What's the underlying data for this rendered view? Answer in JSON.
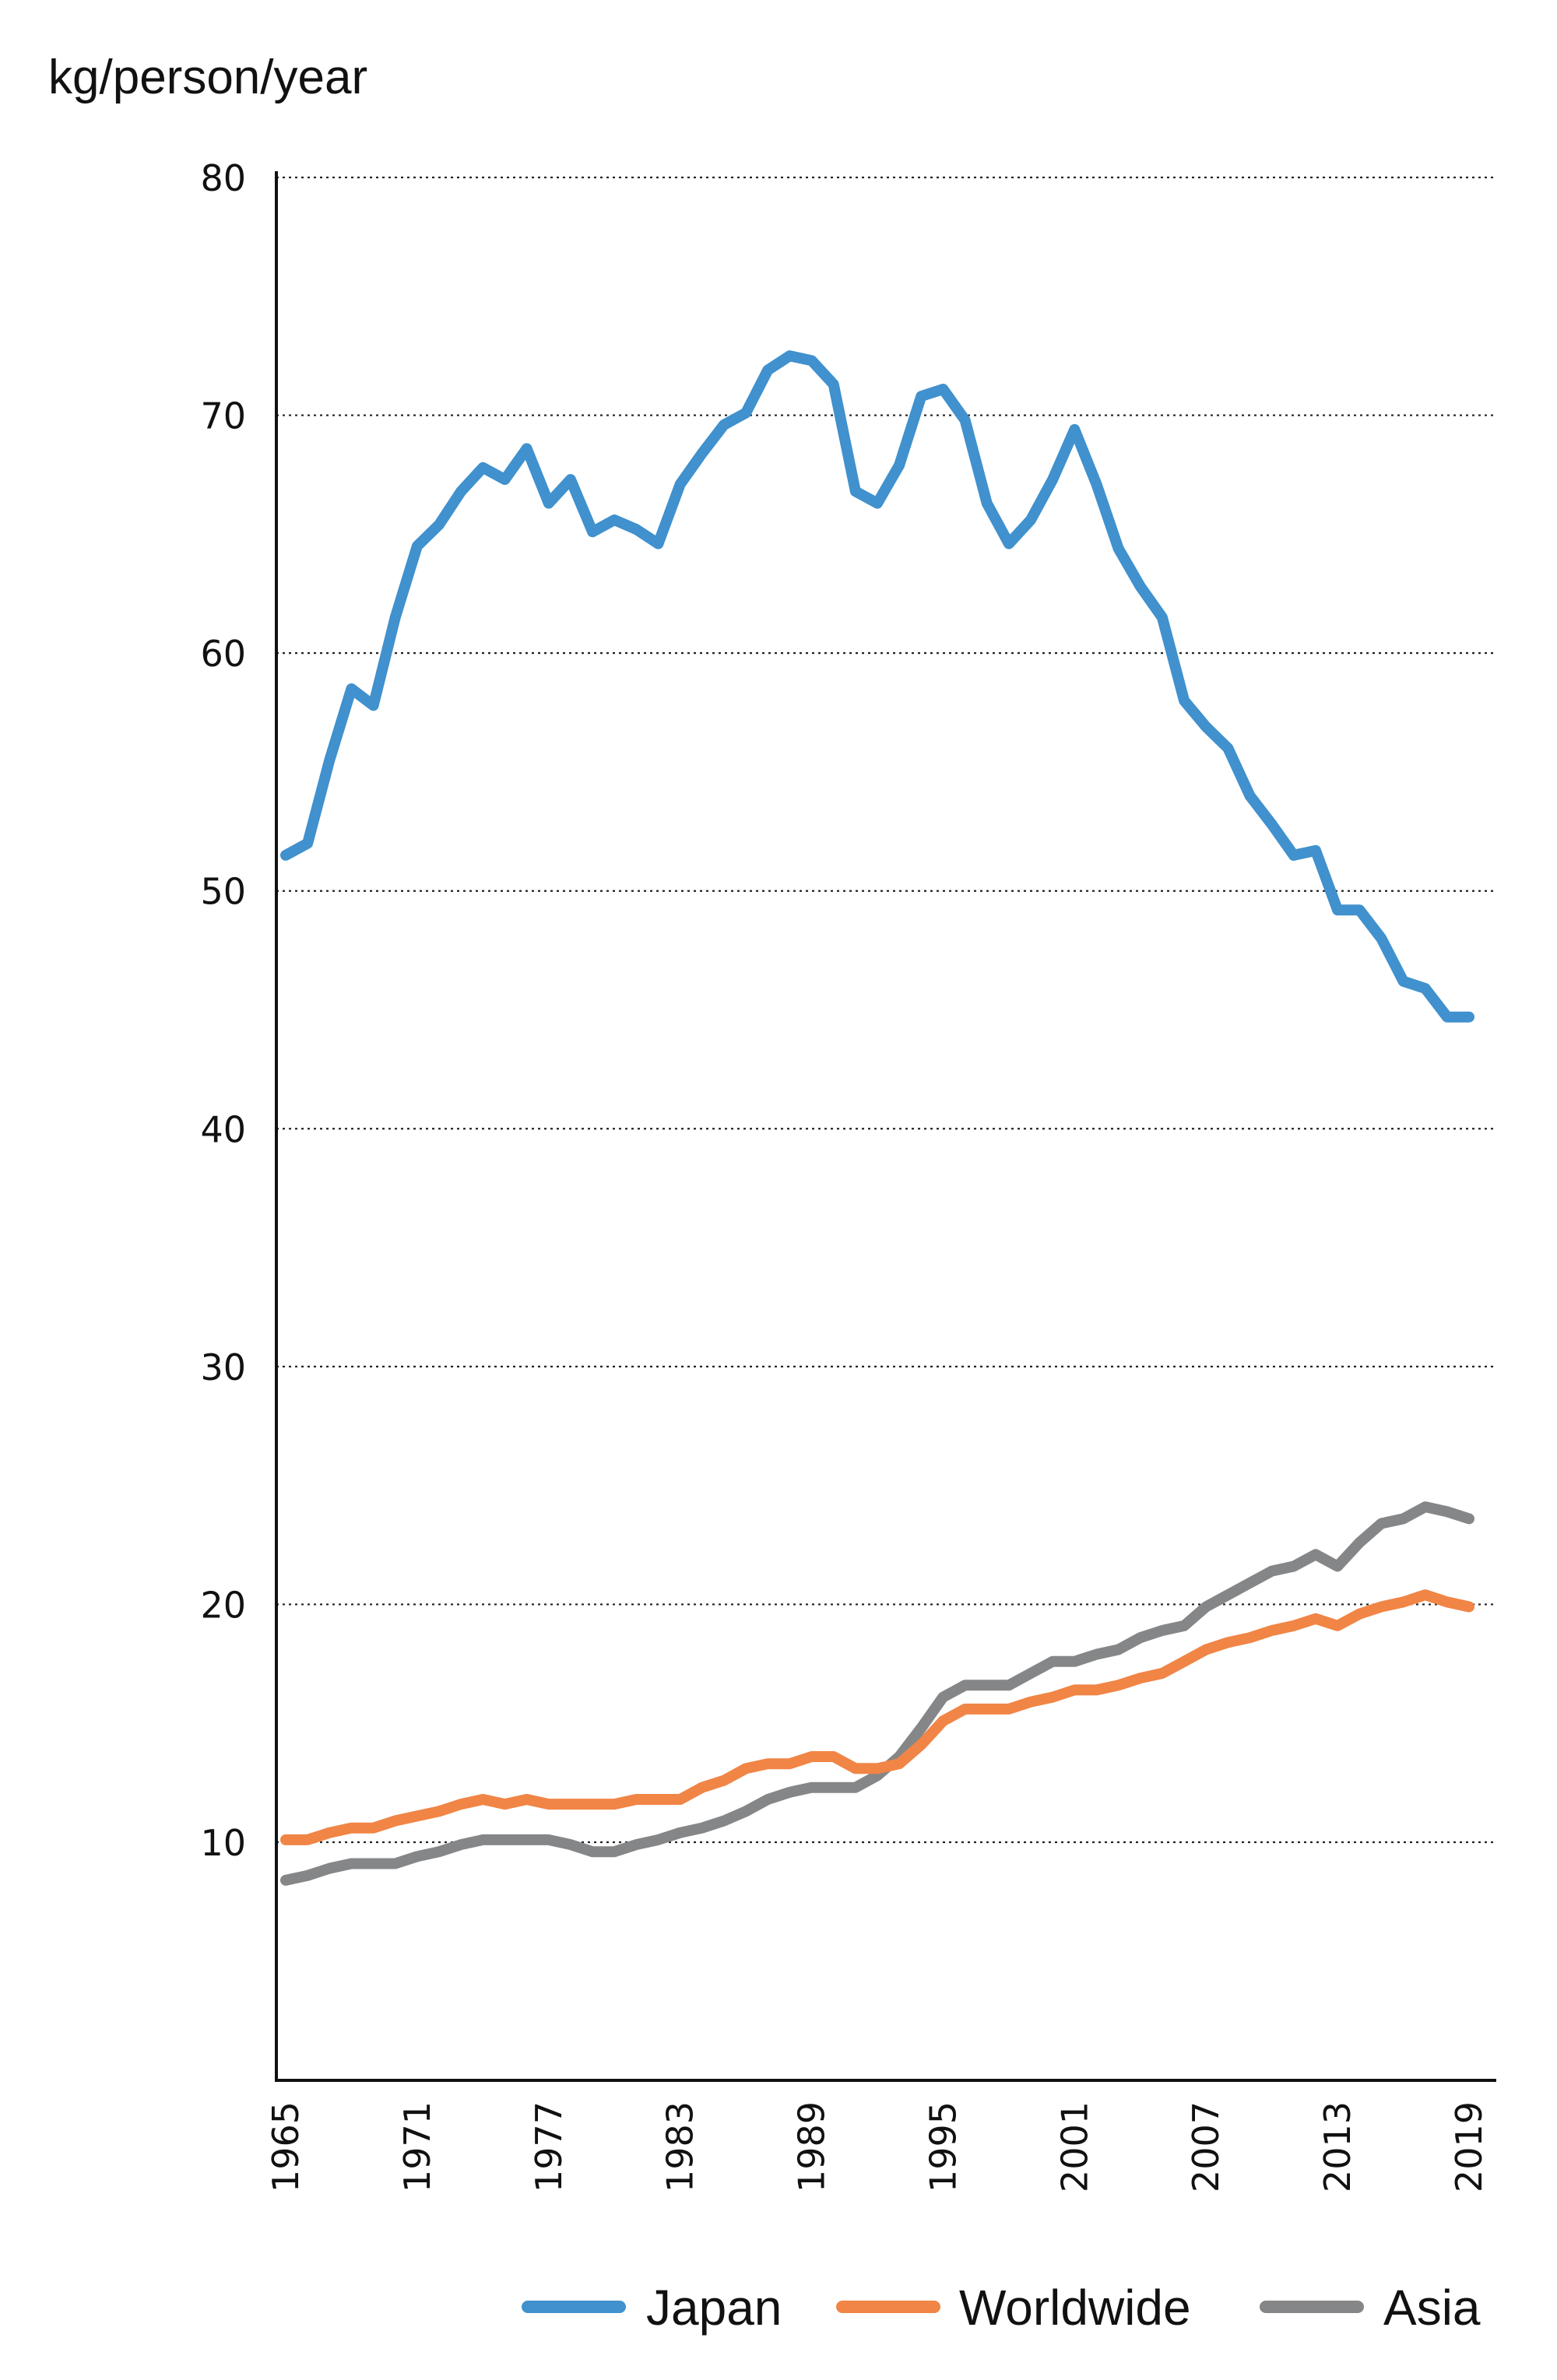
{
  "chart_data": {
    "type": "line",
    "title": "",
    "xlabel": "",
    "ylabel": "kg/person/year",
    "xlim": [
      1965,
      2019
    ],
    "ylim": [
      0,
      80
    ],
    "y_ticks": [
      10,
      20,
      30,
      40,
      50,
      60,
      70,
      80
    ],
    "x_ticks": [
      1965,
      1971,
      1977,
      1983,
      1989,
      1995,
      2001,
      2007,
      2013,
      2019
    ],
    "grid": "horizontal dotted",
    "legend_position": "bottom-right",
    "x": [
      1965,
      1966,
      1967,
      1968,
      1969,
      1970,
      1971,
      1972,
      1973,
      1974,
      1975,
      1976,
      1977,
      1978,
      1979,
      1980,
      1981,
      1982,
      1983,
      1984,
      1985,
      1986,
      1987,
      1988,
      1989,
      1990,
      1991,
      1992,
      1993,
      1994,
      1995,
      1996,
      1997,
      1998,
      1999,
      2000,
      2001,
      2002,
      2003,
      2004,
      2005,
      2006,
      2007,
      2008,
      2009,
      2010,
      2011,
      2012,
      2013,
      2014,
      2015,
      2016,
      2017,
      2018,
      2019
    ],
    "series": [
      {
        "name": "Japan",
        "color": "#4091cd",
        "values": [
          51.5,
          52.0,
          55.5,
          58.5,
          57.8,
          61.5,
          64.5,
          65.4,
          66.8,
          67.8,
          67.3,
          68.6,
          66.3,
          67.3,
          65.1,
          65.6,
          65.2,
          64.6,
          67.1,
          68.4,
          69.6,
          70.1,
          71.9,
          72.5,
          72.3,
          71.3,
          66.8,
          66.3,
          67.9,
          70.8,
          71.1,
          69.8,
          66.3,
          64.6,
          65.6,
          67.3,
          69.4,
          67.1,
          64.4,
          62.8,
          61.5,
          58.0,
          56.9,
          56.0,
          54.0,
          52.8,
          51.5,
          51.7,
          49.2,
          49.2,
          48.0,
          46.2,
          45.9,
          44.7,
          44.7
        ]
      },
      {
        "name": "Worldwide",
        "color": "#f08546",
        "values": [
          10.1,
          10.1,
          10.4,
          10.6,
          10.6,
          10.9,
          11.1,
          11.3,
          11.6,
          11.8,
          11.6,
          11.8,
          11.6,
          11.6,
          11.6,
          11.6,
          11.8,
          11.8,
          11.8,
          12.3,
          12.6,
          13.1,
          13.3,
          13.3,
          13.6,
          13.6,
          13.1,
          13.1,
          13.3,
          14.1,
          15.1,
          15.6,
          15.6,
          15.6,
          15.9,
          16.1,
          16.4,
          16.4,
          16.6,
          16.9,
          17.1,
          17.6,
          18.1,
          18.4,
          18.6,
          18.9,
          19.1,
          19.4,
          19.1,
          19.6,
          19.9,
          20.1,
          20.4,
          20.1,
          19.9
        ]
      },
      {
        "name": "Asia",
        "color": "#858688",
        "values": [
          8.4,
          8.6,
          8.9,
          9.1,
          9.1,
          9.1,
          9.4,
          9.6,
          9.9,
          10.1,
          10.1,
          10.1,
          10.1,
          9.9,
          9.6,
          9.6,
          9.9,
          10.1,
          10.4,
          10.6,
          10.9,
          11.3,
          11.8,
          12.1,
          12.3,
          12.3,
          12.3,
          12.8,
          13.6,
          14.8,
          16.1,
          16.6,
          16.6,
          16.6,
          17.1,
          17.6,
          17.6,
          17.9,
          18.1,
          18.6,
          18.9,
          19.1,
          19.9,
          20.4,
          20.9,
          21.4,
          21.6,
          22.1,
          21.6,
          22.6,
          23.4,
          23.6,
          24.1,
          23.9,
          23.6
        ]
      }
    ]
  }
}
